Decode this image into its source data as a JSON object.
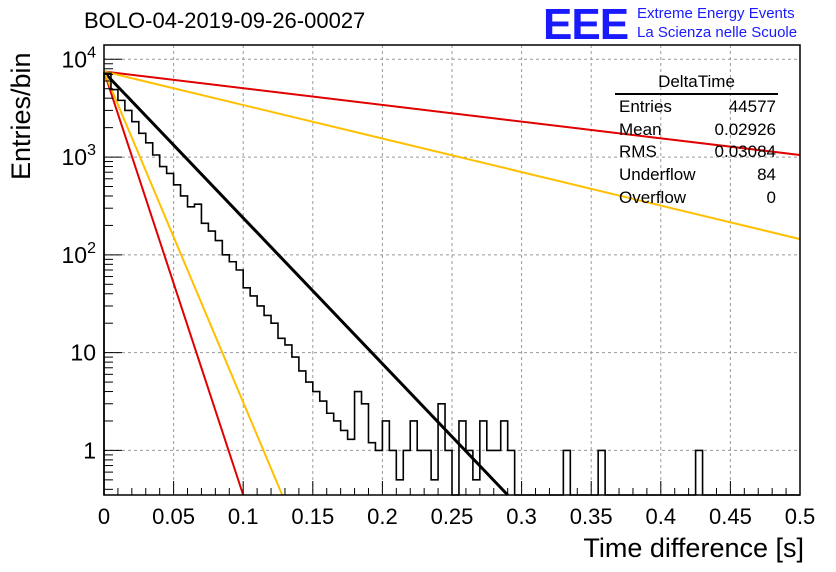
{
  "title": "BOLO-04-2019-09-26-00027",
  "logo": {
    "mark": "EEE",
    "line1": "Extreme Energy Events",
    "line2": "La Scienza nelle Scuole",
    "color": "#1a1aff"
  },
  "stats_box": {
    "name": "DeltaTime",
    "rows": [
      {
        "label": "Entries",
        "value": "44577"
      },
      {
        "label": "Mean",
        "value": "0.02926"
      },
      {
        "label": "RMS",
        "value": "0.03084"
      },
      {
        "label": "Underflow",
        "value": "84"
      },
      {
        "label": "Overflow",
        "value": "0"
      }
    ]
  },
  "chart_data": {
    "type": "line",
    "title": "BOLO-04-2019-09-26-00027",
    "xlabel": "Time difference [s]",
    "ylabel": "Entries/bin",
    "xlim": [
      0,
      0.5
    ],
    "ylim": [
      0.35,
      14000
    ],
    "yscale": "log",
    "grid": true,
    "x_ticks": [
      "0",
      "0.05",
      "0.1",
      "0.15",
      "0.2",
      "0.25",
      "0.3",
      "0.35",
      "0.4",
      "0.45",
      "0.5"
    ],
    "y_ticks": [
      {
        "value": 1,
        "label": "1"
      },
      {
        "value": 10,
        "label": "10"
      },
      {
        "value": 100,
        "label": "10^2"
      },
      {
        "value": 1000,
        "label": "10^3"
      },
      {
        "value": 10000,
        "label": "10^4"
      }
    ],
    "histogram": {
      "name": "DeltaTime",
      "bin_width": 0.005,
      "color": "#000000",
      "bins": [
        [
          0.0,
          7200
        ],
        [
          0.005,
          4900
        ],
        [
          0.01,
          3800
        ],
        [
          0.015,
          3000
        ],
        [
          0.02,
          2300
        ],
        [
          0.025,
          1750
        ],
        [
          0.03,
          1400
        ],
        [
          0.035,
          1050
        ],
        [
          0.04,
          800
        ],
        [
          0.045,
          680
        ],
        [
          0.05,
          520
        ],
        [
          0.055,
          400
        ],
        [
          0.06,
          310
        ],
        [
          0.065,
          330
        ],
        [
          0.07,
          210
        ],
        [
          0.075,
          175
        ],
        [
          0.08,
          140
        ],
        [
          0.085,
          100
        ],
        [
          0.09,
          85
        ],
        [
          0.095,
          70
        ],
        [
          0.1,
          46
        ],
        [
          0.105,
          38
        ],
        [
          0.11,
          30
        ],
        [
          0.115,
          24
        ],
        [
          0.12,
          20
        ],
        [
          0.125,
          14
        ],
        [
          0.13,
          12
        ],
        [
          0.135,
          9
        ],
        [
          0.14,
          6.5
        ],
        [
          0.145,
          5
        ],
        [
          0.15,
          4
        ],
        [
          0.155,
          3.2
        ],
        [
          0.16,
          2.4
        ],
        [
          0.165,
          2
        ],
        [
          0.17,
          1.6
        ],
        [
          0.175,
          1.3
        ],
        [
          0.18,
          4
        ],
        [
          0.185,
          3
        ],
        [
          0.19,
          1.2
        ],
        [
          0.195,
          1
        ],
        [
          0.2,
          2
        ],
        [
          0.205,
          1
        ],
        [
          0.21,
          0.5
        ],
        [
          0.215,
          1
        ],
        [
          0.22,
          2
        ],
        [
          0.225,
          1
        ],
        [
          0.23,
          1
        ],
        [
          0.235,
          0.5
        ],
        [
          0.24,
          3
        ],
        [
          0.245,
          1
        ],
        [
          0.25,
          0.2
        ],
        [
          0.255,
          2
        ],
        [
          0.26,
          1
        ],
        [
          0.265,
          0.5
        ],
        [
          0.27,
          2
        ],
        [
          0.275,
          1
        ],
        [
          0.28,
          1
        ],
        [
          0.285,
          2
        ],
        [
          0.29,
          1
        ],
        [
          0.295,
          0.2
        ],
        [
          0.3,
          0.2
        ],
        [
          0.305,
          0.2
        ],
        [
          0.31,
          0.2
        ],
        [
          0.315,
          0.2
        ],
        [
          0.32,
          0.2
        ],
        [
          0.325,
          0.2
        ],
        [
          0.33,
          1
        ],
        [
          0.335,
          0.2
        ],
        [
          0.34,
          0.2
        ],
        [
          0.345,
          0.2
        ],
        [
          0.35,
          0.2
        ],
        [
          0.355,
          1
        ],
        [
          0.36,
          0.2
        ],
        [
          0.365,
          0.2
        ],
        [
          0.37,
          0.2
        ],
        [
          0.375,
          0.2
        ],
        [
          0.38,
          0.2
        ],
        [
          0.385,
          0.2
        ],
        [
          0.39,
          0.2
        ],
        [
          0.395,
          0.2
        ],
        [
          0.4,
          0.2
        ],
        [
          0.405,
          0.2
        ],
        [
          0.41,
          0.2
        ],
        [
          0.415,
          0.2
        ],
        [
          0.42,
          0.2
        ],
        [
          0.425,
          1
        ],
        [
          0.43,
          0.2
        ],
        [
          0.435,
          0.2
        ],
        [
          0.44,
          0.2
        ],
        [
          0.445,
          0.2
        ],
        [
          0.45,
          0.2
        ],
        [
          0.455,
          0.2
        ],
        [
          0.46,
          0.2
        ],
        [
          0.465,
          0.2
        ],
        [
          0.47,
          0.2
        ],
        [
          0.475,
          0.2
        ],
        [
          0.48,
          0.2
        ],
        [
          0.485,
          0.2
        ],
        [
          0.49,
          0.2
        ],
        [
          0.495,
          0.2
        ]
      ]
    },
    "series": [
      {
        "color": "#000000",
        "x": [
          0,
          0.29
        ],
        "y": [
          7400,
          0.35
        ]
      },
      {
        "color": "#e00000",
        "x": [
          0,
          0.5
        ],
        "y": [
          7500,
          1050
        ]
      },
      {
        "color": "#ffc000",
        "x": [
          0,
          0.5
        ],
        "y": [
          7500,
          145
        ]
      },
      {
        "color": "#e00000",
        "x": [
          0,
          0.1
        ],
        "y": [
          7500,
          0.35
        ]
      },
      {
        "color": "#ffc000",
        "x": [
          0,
          0.128
        ],
        "y": [
          7500,
          0.35
        ]
      }
    ]
  }
}
